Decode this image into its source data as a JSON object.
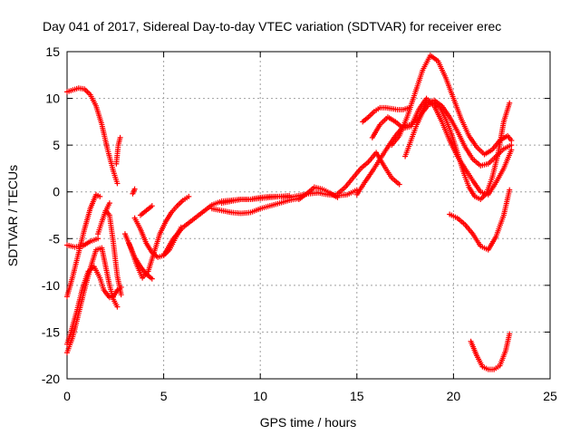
{
  "chart_data": {
    "type": "scatter",
    "title": "Day 041 of 2017, Sidereal Day-to-day VTEC variation (SDTVAR) for receiver erec",
    "xlabel": "GPS time / hours",
    "ylabel": "SDTVAR / TECUs",
    "xlim": [
      0,
      25
    ],
    "ylim": [
      -20,
      15
    ],
    "xticks": [
      "0",
      "5",
      "10",
      "15",
      "20",
      "25"
    ],
    "yticks": [
      "15",
      "10",
      "5",
      "0",
      "-5",
      "-10",
      "-15",
      "-20"
    ],
    "grid": true,
    "legend": "none",
    "marker": "+",
    "color": "#ff0000",
    "series": [
      {
        "tracks": [
          {
            "x": [
              0,
              0.3,
              0.6,
              0.9,
              1.2,
              1.5,
              1.8,
              2.1,
              2.4,
              2.6
            ],
            "y": [
              10.7,
              10.9,
              11.1,
              11.0,
              10.4,
              9.2,
              7.2,
              4.5,
              2.2,
              0.9
            ]
          },
          {
            "x": [
              2.55,
              2.65,
              2.75
            ],
            "y": [
              3.0,
              5.0,
              5.8
            ]
          },
          {
            "x": [
              0,
              0.3,
              0.6,
              0.9,
              1.2,
              1.5,
              1.8,
              2.0,
              2.2,
              2.4,
              2.6
            ],
            "y": [
              -17.2,
              -15.5,
              -13.0,
              -10.5,
              -8.2,
              -6.2,
              -6.0,
              -8.0,
              -10.0,
              -11.5,
              -12.3
            ]
          },
          {
            "x": [
              0,
              0.3,
              0.6,
              0.9,
              1.2,
              1.5,
              1.7
            ],
            "y": [
              -11.2,
              -9.0,
              -6.5,
              -4.0,
              -1.8,
              -0.3,
              -0.5
            ]
          },
          {
            "x": [
              0,
              0.4,
              0.8,
              1.2,
              1.6
            ],
            "y": [
              -5.7,
              -5.9,
              -5.8,
              -5.3,
              -5.0
            ]
          },
          {
            "x": [
              1.6,
              1.8,
              2.0,
              2.2,
              2.4,
              2.6,
              2.8
            ],
            "y": [
              -4.5,
              -3.2,
              -2.0,
              -2.5,
              -5.5,
              -9.0,
              -11.0
            ]
          },
          {
            "x": [
              0,
              0.2,
              0.5,
              0.8,
              1.1,
              1.4,
              1.7,
              1.9,
              2.2,
              2.4,
              2.6,
              2.8
            ],
            "y": [
              -16.3,
              -15.0,
              -12.8,
              -10.3,
              -8.5,
              -8.0,
              -9.2,
              -10.5,
              -11.3,
              -11.2,
              -10.5,
              -10.2
            ]
          },
          {
            "x": [
              2.0,
              2.1,
              2.2
            ],
            "y": [
              -2.2,
              -1.6,
              -1.2
            ]
          },
          {
            "x": [
              3.0,
              3.3,
              3.6,
              3.9,
              4.2,
              4.5,
              4.8,
              5.1,
              5.4,
              5.7,
              6.0,
              6.3
            ],
            "y": [
              -4.5,
              -6.0,
              -7.8,
              -9.2,
              -8.5,
              -6.5,
              -4.5,
              -3.2,
              -2.2,
              -1.5,
              -0.9,
              -0.5
            ]
          },
          {
            "x": [
              3.5,
              3.8,
              4.1,
              4.4,
              4.7,
              5.0,
              5.3,
              5.6,
              5.9
            ],
            "y": [
              -2.8,
              -4.0,
              -5.5,
              -6.5,
              -7.0,
              -6.8,
              -6.2,
              -5.0,
              -3.8
            ]
          },
          {
            "x": [
              3.2,
              3.5,
              3.8,
              4.1,
              4.4
            ],
            "y": [
              -5.5,
              -7.0,
              -8.0,
              -8.8,
              -9.3
            ]
          },
          {
            "x": [
              3.4,
              3.5
            ],
            "y": [
              -0.2,
              0.3
            ]
          },
          {
            "x": [
              3.8,
              4.1,
              4.4
            ],
            "y": [
              -2.5,
              -2.0,
              -1.5
            ]
          },
          {
            "x": [
              5.0,
              5.5,
              6.0,
              6.5,
              7.0,
              7.5,
              8.0,
              8.5,
              9.0,
              9.5,
              10.0,
              10.5,
              11.0,
              11.5,
              12.0,
              12.5,
              13.0,
              13.5,
              14.0,
              14.5,
              15.0
            ],
            "y": [
              -6.8,
              -5.0,
              -3.8,
              -3.0,
              -2.2,
              -1.4,
              -1.0,
              -0.9,
              -0.8,
              -0.8,
              -0.6,
              -0.5,
              -0.5,
              -0.6,
              -0.4,
              -0.2,
              -0.1,
              -0.3,
              -0.4,
              -0.3,
              0.2
            ]
          },
          {
            "x": [
              7.5,
              8.0,
              8.5,
              9.0,
              9.5,
              10.0,
              10.5,
              11.0,
              11.5,
              12.0
            ],
            "y": [
              -1.8,
              -2.0,
              -2.2,
              -2.3,
              -2.2,
              -1.8,
              -1.5,
              -1.2,
              -0.9,
              -0.7
            ]
          },
          {
            "x": [
              8.0,
              8.5,
              9.0,
              9.5,
              10.0,
              10.5,
              11.0,
              11.5
            ],
            "y": [
              -1.2,
              -1.0,
              -0.8,
              -0.8,
              -0.7,
              -0.6,
              -0.5,
              -0.4
            ]
          },
          {
            "x": [
              12.0,
              12.4,
              12.8,
              13.2,
              13.6,
              14.0
            ],
            "y": [
              -0.8,
              -0.2,
              0.5,
              0.3,
              -0.1,
              -0.6
            ]
          },
          {
            "x": [
              14.0,
              14.4,
              14.8,
              15.2,
              15.6,
              16.0,
              16.4,
              16.8,
              17.2
            ],
            "y": [
              -0.2,
              0.5,
              1.5,
              2.5,
              3.2,
              4.2,
              2.8,
              1.5,
              0.8
            ]
          },
          {
            "x": [
              15.0,
              15.4,
              15.8,
              16.2,
              16.6,
              17.0,
              17.4,
              17.8,
              18.2,
              18.6,
              19.0,
              19.4,
              19.8,
              20.2,
              20.6,
              21.0,
              21.4,
              21.8,
              22.2,
              22.6,
              23.0
            ],
            "y": [
              -0.3,
              1.0,
              2.2,
              3.5,
              4.8,
              6.0,
              7.0,
              7.2,
              8.0,
              9.5,
              9.8,
              9.2,
              8.0,
              6.5,
              4.8,
              3.5,
              2.8,
              3.0,
              3.8,
              4.6,
              5.0
            ]
          },
          {
            "x": [
              15.3,
              15.6,
              15.9,
              16.2,
              16.5,
              16.8,
              17.1,
              17.4,
              17.7
            ],
            "y": [
              7.5,
              8.0,
              8.6,
              9.0,
              9.0,
              8.9,
              8.8,
              8.8,
              9.0
            ]
          },
          {
            "x": [
              15.8,
              16.2,
              16.6,
              17.0,
              17.4,
              17.8,
              18.2,
              18.6,
              19.0,
              19.4,
              19.8,
              20.2,
              20.6,
              21.0,
              21.4,
              21.8,
              22.2,
              22.6,
              23.0
            ],
            "y": [
              5.8,
              7.2,
              8.0,
              7.5,
              6.8,
              7.0,
              8.8,
              10.0,
              9.2,
              7.5,
              5.5,
              3.8,
              2.5,
              1.2,
              0.0,
              -0.3,
              1.0,
              2.5,
              4.5
            ]
          },
          {
            "x": [
              16.8,
              17.2,
              17.6,
              18.0,
              18.4,
              18.8,
              19.2,
              19.6,
              20.0,
              20.4,
              20.8,
              21.2,
              21.6,
              22.0,
              22.4,
              22.8,
              23.0
            ],
            "y": [
              5.0,
              6.0,
              8.0,
              10.5,
              13.0,
              14.6,
              14.0,
              12.2,
              10.0,
              7.8,
              6.0,
              4.8,
              4.0,
              4.5,
              5.5,
              6.0,
              5.5
            ]
          },
          {
            "x": [
              17.5,
              17.8,
              18.1,
              18.4,
              18.7,
              19.0,
              19.3,
              19.6,
              19.9,
              20.2,
              20.5,
              20.8,
              21.1,
              21.4,
              21.7,
              22.0,
              22.3,
              22.6,
              22.9
            ],
            "y": [
              3.8,
              5.5,
              7.2,
              8.5,
              9.3,
              9.5,
              9.0,
              7.8,
              6.2,
              4.2,
              2.2,
              0.5,
              -0.5,
              -0.8,
              -0.2,
              1.5,
              4.0,
              7.5,
              9.5
            ]
          },
          {
            "x": [
              19.8,
              20.2,
              20.6,
              21.0,
              21.4,
              21.8,
              22.2,
              22.6,
              22.9
            ],
            "y": [
              -2.4,
              -2.8,
              -3.5,
              -4.5,
              -5.8,
              -6.2,
              -4.8,
              -2.5,
              0.2
            ]
          },
          {
            "x": [
              20.9,
              21.2,
              21.5,
              21.8,
              22.1,
              22.4,
              22.7,
              22.9
            ],
            "y": [
              -16.0,
              -17.5,
              -18.7,
              -19.0,
              -19.0,
              -18.6,
              -17.0,
              -15.2
            ]
          }
        ]
      }
    ]
  }
}
